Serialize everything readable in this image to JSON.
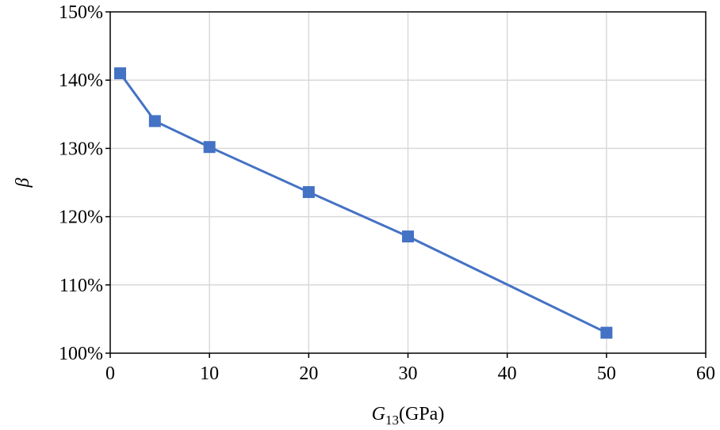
{
  "chart_data": {
    "type": "line",
    "x": [
      1,
      4.5,
      10,
      20,
      30,
      50
    ],
    "series": [
      {
        "values": [
          141,
          134,
          130.2,
          123.6,
          117.1,
          103
        ],
        "color": "#4472c4",
        "marker": "square"
      }
    ],
    "xlabel": {
      "symbol": "G",
      "subscript": "13",
      "unit": "(GPa)"
    },
    "ylabel": "β",
    "xlim": [
      0,
      60
    ],
    "ylim": [
      100,
      150
    ],
    "x_ticks": [
      "0",
      "10",
      "20",
      "30",
      "40",
      "50",
      "60"
    ],
    "y_ticks": [
      "100%",
      "110%",
      "120%",
      "130%",
      "140%",
      "150%"
    ],
    "grid": true,
    "legend": "none"
  }
}
